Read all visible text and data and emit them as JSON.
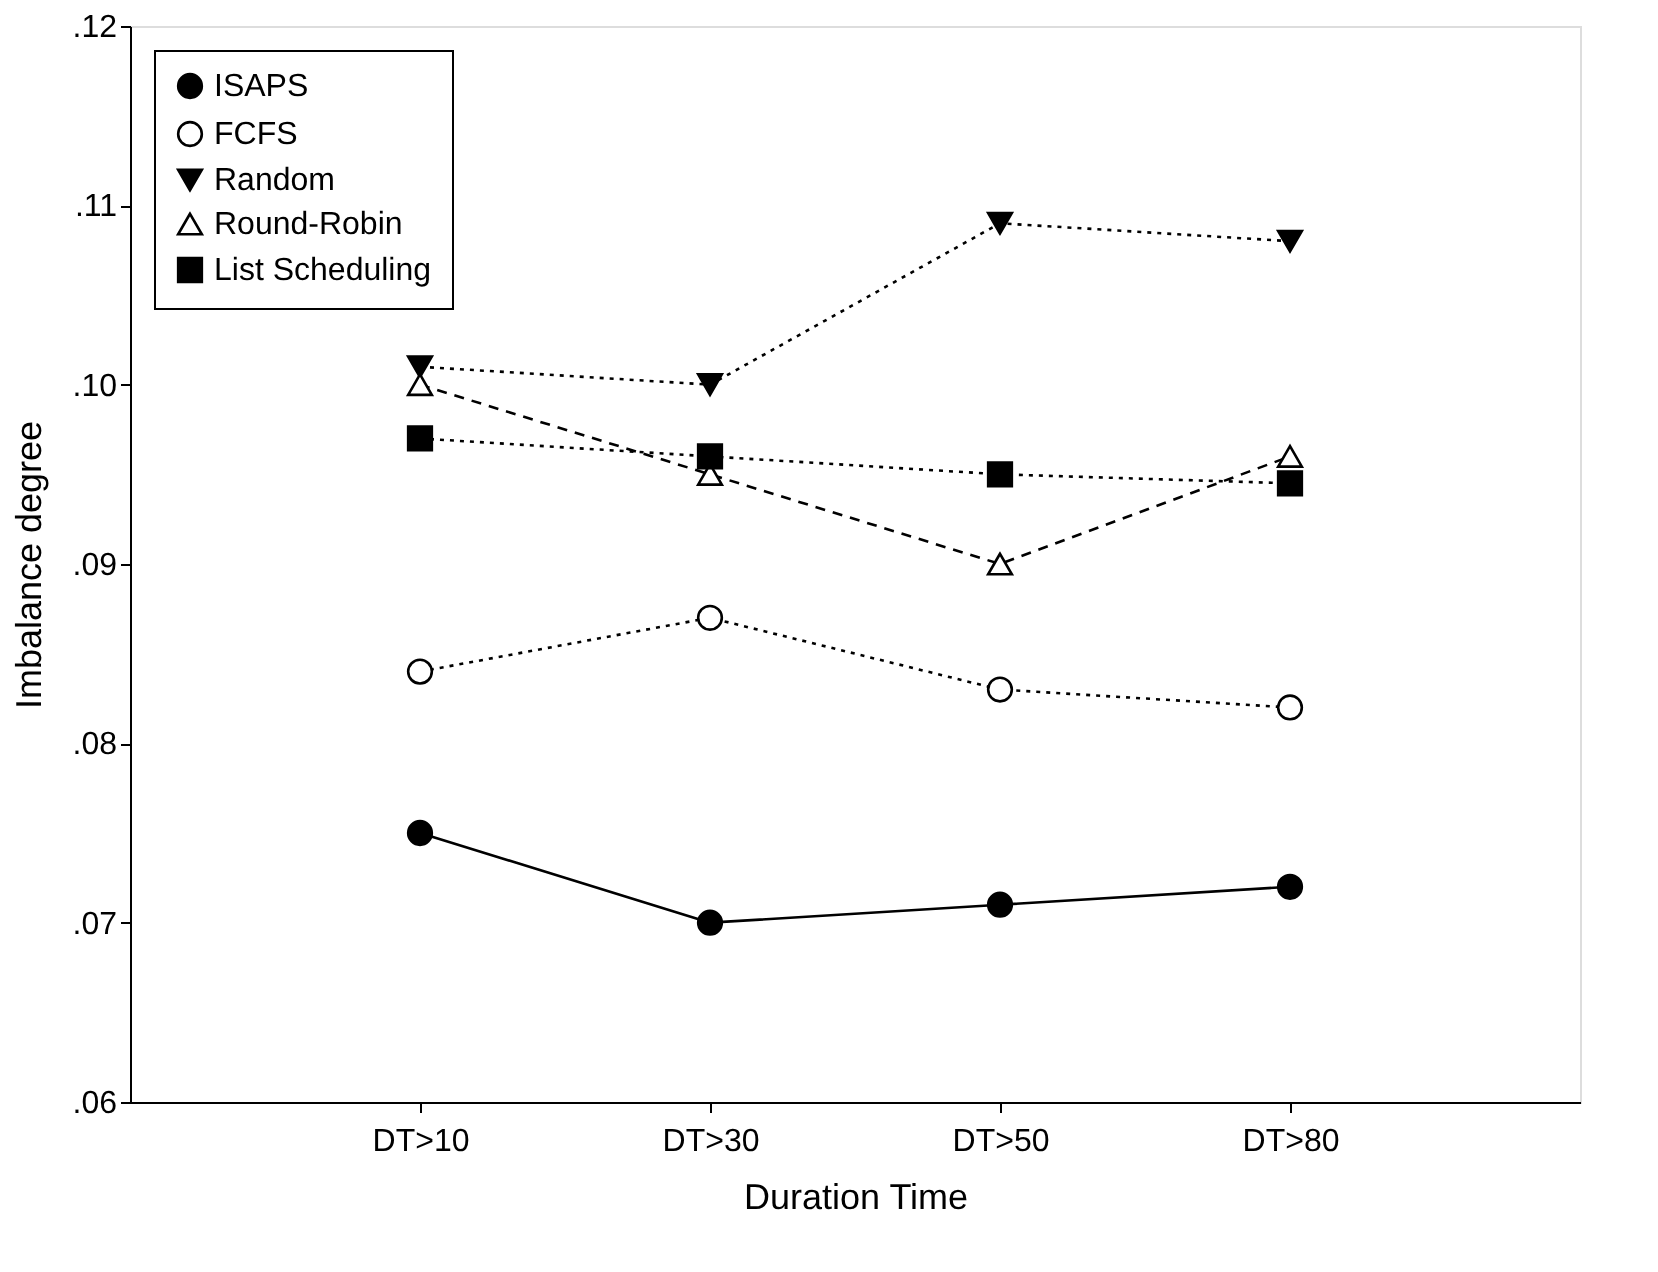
{
  "chart_data": {
    "type": "line",
    "xlabel": "Duration Time",
    "ylabel": "Imbalance degree",
    "categories": [
      "DT>10",
      "DT>30",
      "DT>50",
      "DT>80"
    ],
    "series": [
      {
        "name": "ISAPS",
        "color": "#000000",
        "marker": "circle",
        "line_style": "solid",
        "values": [
          0.075,
          0.07,
          0.071,
          0.072
        ]
      },
      {
        "name": "FCFS",
        "color": "#000000",
        "marker": "circle-open",
        "line_style": "dotted",
        "values": [
          0.084,
          0.087,
          0.083,
          0.082
        ]
      },
      {
        "name": "Random",
        "color": "#000000",
        "marker": "triangle-down",
        "line_style": "dotted",
        "values": [
          0.101,
          0.1,
          0.109,
          0.108
        ]
      },
      {
        "name": "Round-Robin",
        "color": "#000000",
        "marker": "triangle-open",
        "line_style": "dashed",
        "values": [
          0.1,
          0.095,
          0.09,
          0.096
        ]
      },
      {
        "name": "List Scheduling",
        "color": "#000000",
        "marker": "square",
        "line_style": "dotted",
        "values": [
          0.097,
          0.096,
          0.095,
          0.0945
        ]
      }
    ],
    "ylim": [
      0.06,
      0.12
    ],
    "yticks": [
      {
        "value": 0.06,
        "label": ".06"
      },
      {
        "value": 0.07,
        "label": ".07"
      },
      {
        "value": 0.08,
        "label": ".08"
      },
      {
        "value": 0.09,
        "label": ".09"
      },
      {
        "value": 0.1,
        "label": ".10"
      },
      {
        "value": 0.11,
        "label": ".11"
      },
      {
        "value": 0.12,
        "label": ".12"
      }
    ],
    "grid": false,
    "legend": "top left"
  }
}
